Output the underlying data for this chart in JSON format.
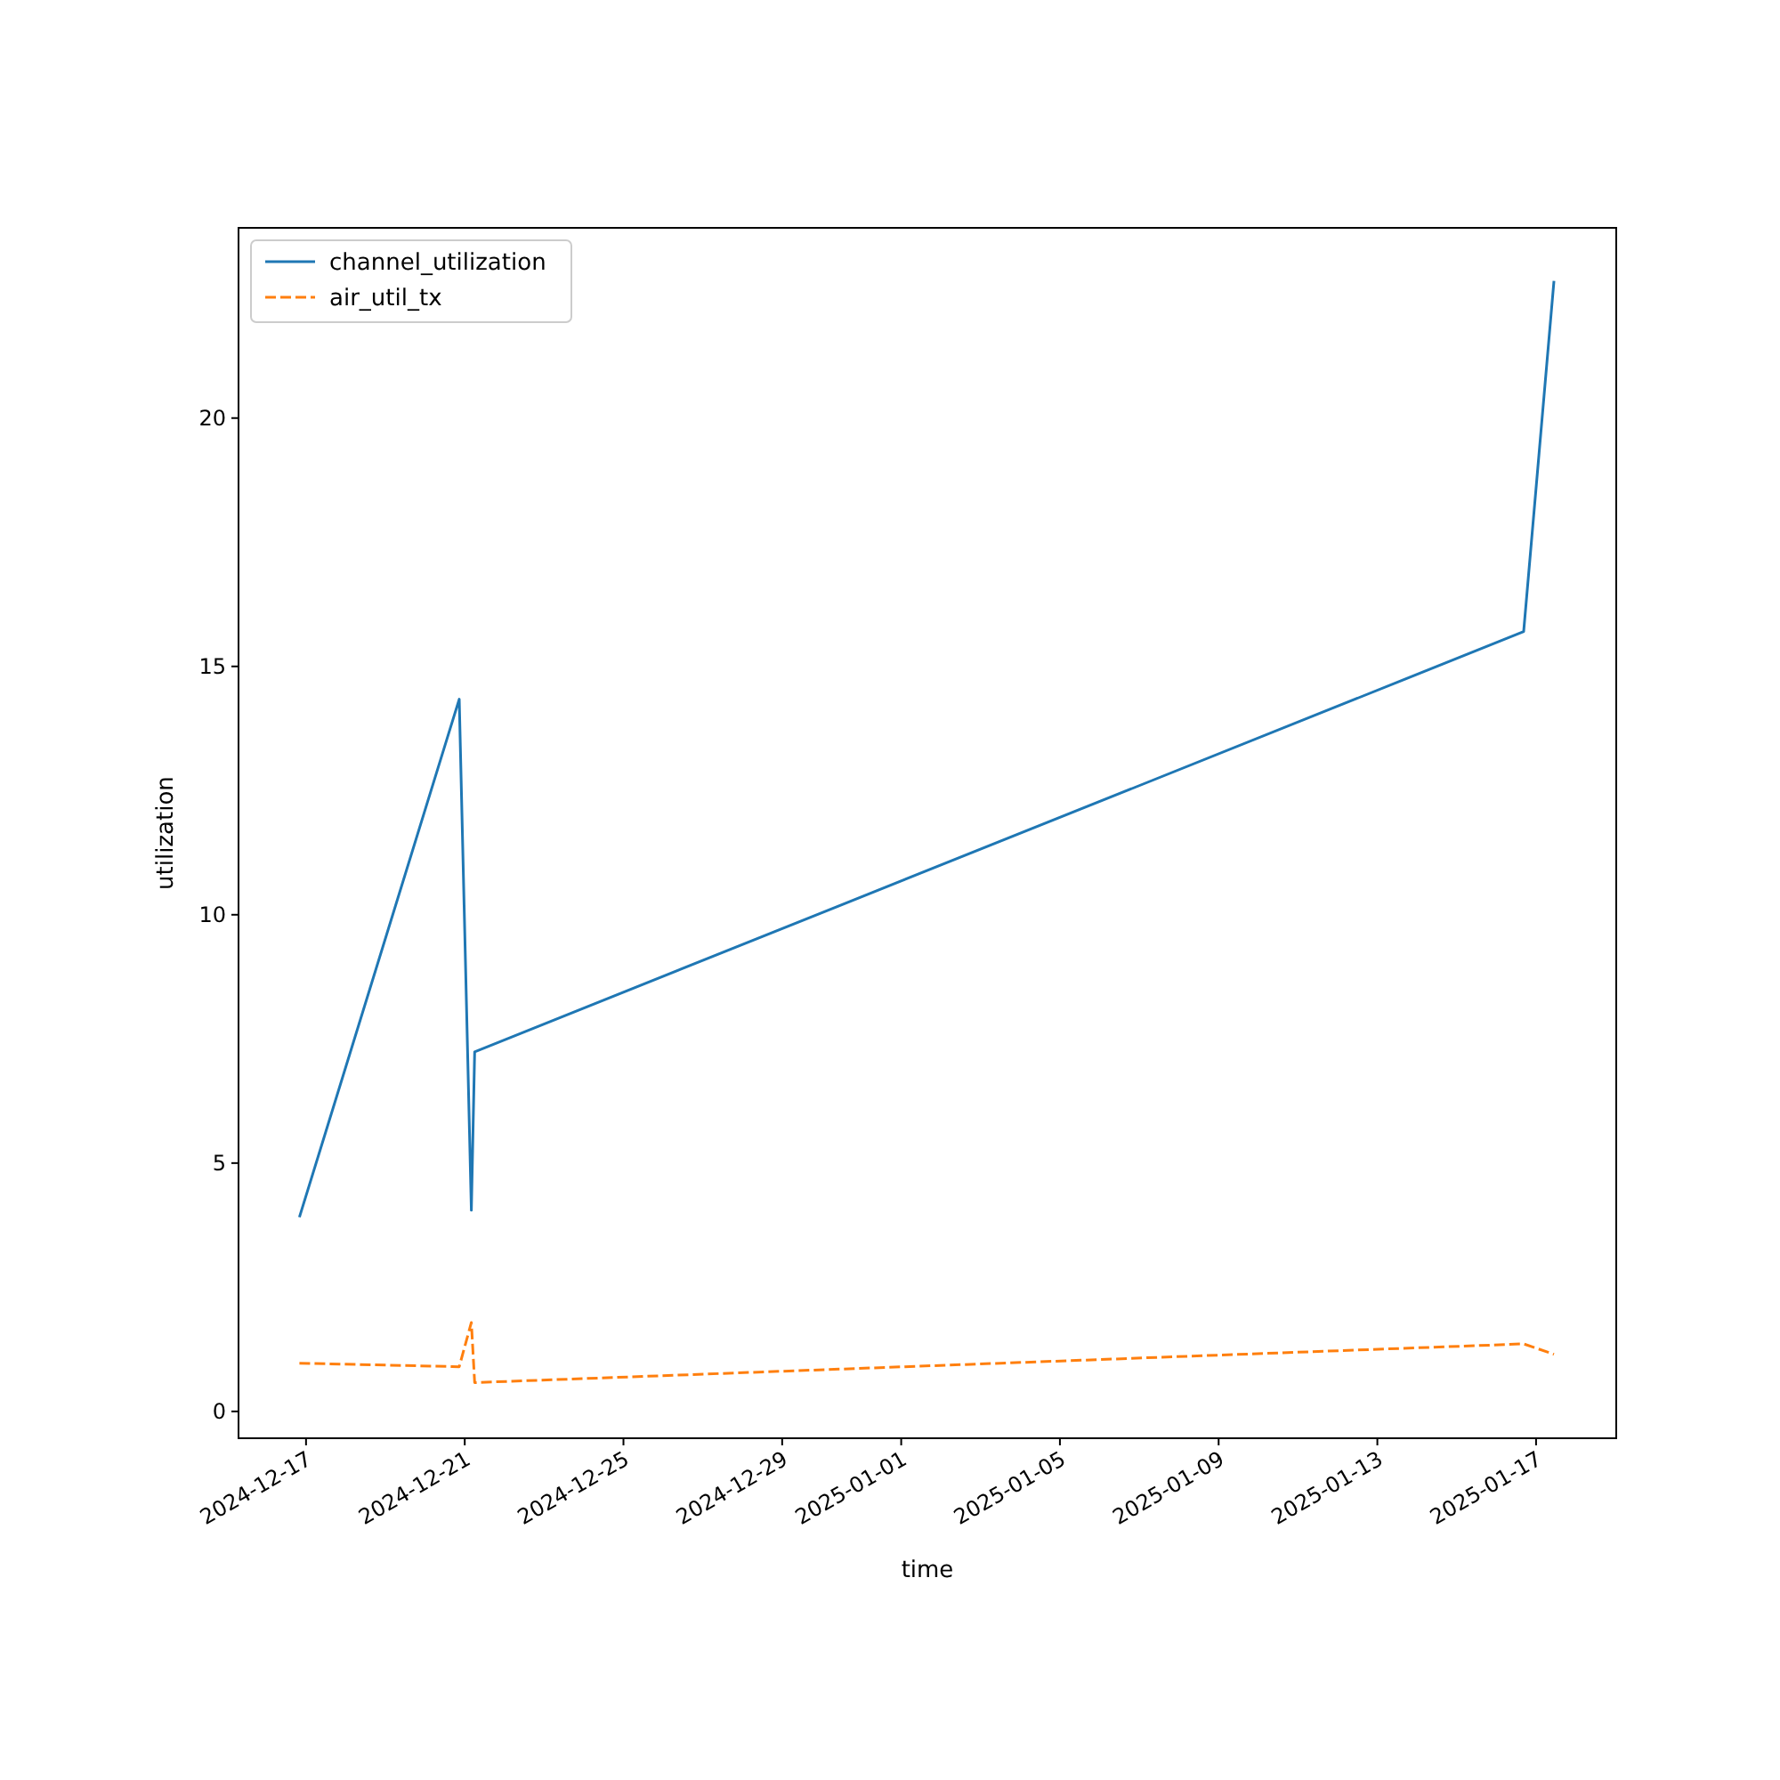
{
  "chart_data": {
    "type": "line",
    "xlabel": "time",
    "ylabel": "utilization",
    "x": [
      "2024-12-16T20:00",
      "2024-12-20T20:40",
      "2024-12-21T04:00",
      "2024-12-21T06:00",
      "2025-01-16T16:30",
      "2025-01-17T10:50"
    ],
    "series": [
      {
        "name": "channel_utilization",
        "color": "#1f77b4",
        "line_style": "solid",
        "values": [
          3.91,
          14.34,
          4.05,
          7.24,
          15.7,
          22.76
        ]
      },
      {
        "name": "air_util_tx",
        "color": "#ff7f0e",
        "line_style": "dashed",
        "values": [
          0.97,
          0.9,
          1.79,
          0.58,
          1.36,
          1.15
        ]
      }
    ],
    "xlim": [
      "2024-12-15T07:10",
      "2025-01-19T00:30"
    ],
    "xticks": [
      "2024-12-17",
      "2024-12-21",
      "2024-12-25",
      "2024-12-29",
      "2025-01-01",
      "2025-01-05",
      "2025-01-09",
      "2025-01-13",
      "2025-01-17"
    ],
    "ylim": [
      -0.54,
      23.83
    ],
    "yticks": [
      0,
      5,
      10,
      15,
      20
    ],
    "grid": false,
    "legend": "top left"
  }
}
